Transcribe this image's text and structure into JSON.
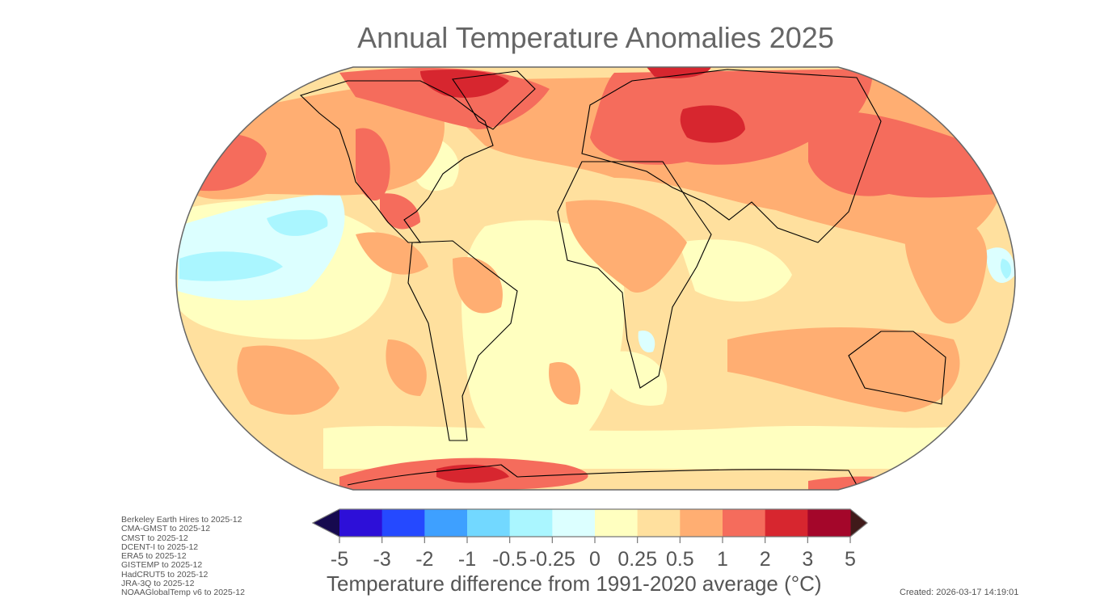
{
  "title": "Annual Temperature Anomalies 2025",
  "colorbar": {
    "ticks": [
      "-5",
      "-3",
      "-2",
      "-1",
      "-0.5",
      "-0.25",
      "0",
      "0.25",
      "0.5",
      "1",
      "2",
      "3",
      "5"
    ],
    "colors": [
      "#2d0fd8",
      "#2549ff",
      "#3ea0ff",
      "#72d8ff",
      "#aaf6ff",
      "#dcffff",
      "#ffffc0",
      "#ffe09e",
      "#ffae72",
      "#f56c5c",
      "#d7262f",
      "#a4062a"
    ],
    "under_color": "#16094f",
    "over_color": "#401a1a",
    "label": "Temperature difference from 1991-2020 average (°C)"
  },
  "datasets": [
    "Berkeley Earth Hires to 2025-12",
    "CMA-GMST to 2025-12",
    "CMST to 2025-12",
    "DCENT-I to 2025-12",
    "ERA5 to 2025-12",
    "GISTEMP to 2025-12",
    "HadCRUT5 to 2025-12",
    "JRA-3Q to 2025-12",
    "NOAAGlobalTemp v6 to 2025-12"
  ],
  "created": "Created: 2026-03-17 14:19:01"
}
